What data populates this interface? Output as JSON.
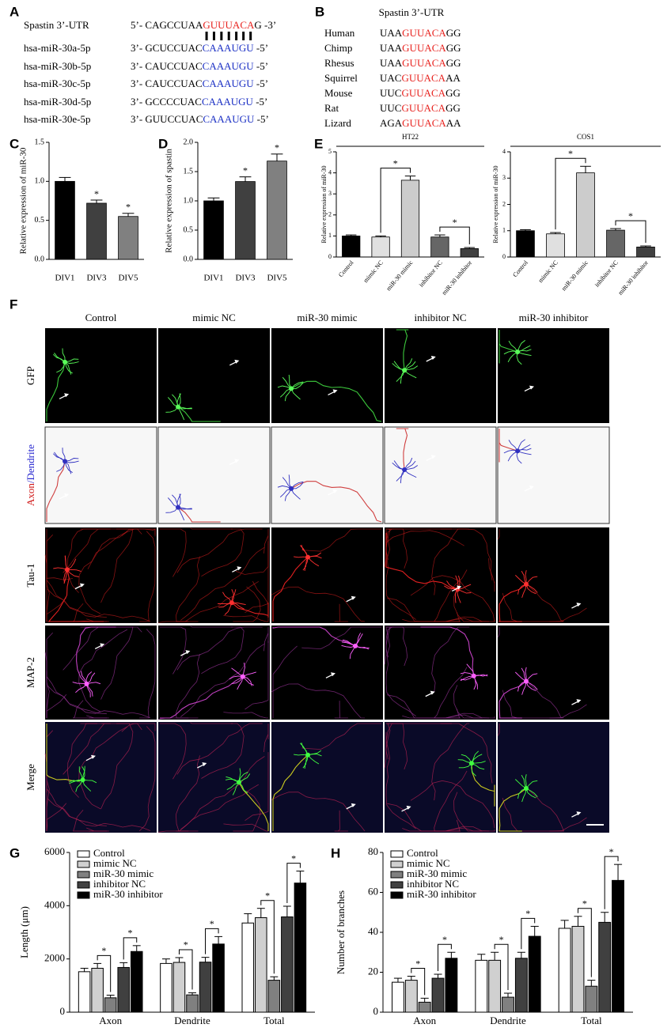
{
  "panel_a": {
    "panel_label": "A",
    "target": {
      "name": "Spastin 3’-UTR",
      "seq": [
        "5’- CAGCCUAA",
        "GUUUACA",
        "G -3’"
      ]
    },
    "mirnas": [
      {
        "name": "hsa-miR-30a-5p",
        "seq": [
          "3’- GCUCCUAC",
          "CAAAUGU",
          " -5’"
        ]
      },
      {
        "name": "hsa-miR-30b-5p",
        "seq": [
          "3’- CAUCCUAC",
          "CAAAUGU",
          " -5’"
        ]
      },
      {
        "name": "hsa-miR-30c-5p",
        "seq": [
          "3’- CAUCCUAC",
          "CAAAUGU",
          " -5’"
        ]
      },
      {
        "name": "hsa-miR-30d-5p",
        "seq": [
          "3’- GCCCCUAC",
          "CAAAUGU",
          " -5’"
        ]
      },
      {
        "name": "hsa-miR-30e-5p",
        "seq": [
          "3’- GUUCCUAC",
          "CAAAUGU",
          " -5’"
        ]
      }
    ]
  },
  "panel_b": {
    "panel_label": "B",
    "title": "Spastin 3’-UTR",
    "species": [
      {
        "name": "Human",
        "seq": [
          "UAA",
          "GUUACA",
          "GG"
        ]
      },
      {
        "name": "Chimp",
        "seq": [
          "UAA",
          "GUUACA",
          "GG"
        ]
      },
      {
        "name": "Rhesus",
        "seq": [
          "UAA",
          "GUUACA",
          "GG"
        ]
      },
      {
        "name": "Squirrel",
        "seq": [
          "UAC",
          "GUUACA",
          "AA"
        ]
      },
      {
        "name": "Mouse",
        "seq": [
          "UUC",
          "GUUACA",
          "GG"
        ]
      },
      {
        "name": "Rat",
        "seq": [
          "UUC",
          "GUUACA",
          "GG"
        ]
      },
      {
        "name": "Lizard",
        "seq": [
          "AGA",
          "GUUACA",
          "AA"
        ]
      }
    ]
  },
  "panel_f": {
    "panel_label": "F",
    "columns": [
      "Control",
      "mimic NC",
      "miR-30 mimic",
      "inhibitor NC",
      "miR-30 inhibitor"
    ],
    "rows": [
      [
        "GFP"
      ],
      [
        "Axon",
        "/Dendrite"
      ],
      [
        "Tau-1"
      ],
      [
        "MAP-2"
      ],
      [
        "Merge"
      ]
    ]
  },
  "chart_data": [
    {
      "type": "bar",
      "panel_label": "C",
      "y_label": "Relative expression of miR-30",
      "categories": [
        "DIV1",
        "DIV3",
        "DIV5"
      ],
      "values": [
        1.0,
        0.72,
        0.55
      ],
      "errors": [
        0.05,
        0.04,
        0.04
      ],
      "colors": [
        "#000000",
        "#404040",
        "#808080"
      ],
      "ylim": [
        0,
        1.5
      ],
      "yticks": [
        {
          "value": 0,
          "label": "0.0"
        },
        0.5,
        {
          "value": 1,
          "label": "1.0"
        },
        1.5
      ],
      "annotations": [
        "*",
        "*"
      ]
    },
    {
      "type": "bar",
      "panel_label": "D",
      "y_label": "Relative expression of spastin",
      "categories": [
        "DIV1",
        "DIV3",
        "DIV5"
      ],
      "values": [
        1.0,
        1.33,
        1.68
      ],
      "errors": [
        0.05,
        0.08,
        0.12
      ],
      "colors": [
        "#000000",
        "#404040",
        "#808080"
      ],
      "ylim": [
        0,
        2
      ],
      "yticks": [
        {
          "value": 0,
          "label": "0.0"
        },
        0.5,
        {
          "value": 1,
          "label": "1.0"
        },
        1.5,
        {
          "value": 2,
          "label": "2.0"
        }
      ],
      "annotations": [
        "*",
        "*"
      ]
    },
    {
      "type": "bar",
      "panel_label": "E",
      "title": "HT22",
      "y_label": "Relative expression of miR-30",
      "categories": [
        "Control",
        "mimic NC",
        "miR-30 mimic",
        "inhibitor NC",
        "miR-30 inhibitor"
      ],
      "values": [
        1.0,
        0.95,
        3.65,
        0.95,
        0.4
      ],
      "errors": [
        0.05,
        0.05,
        0.2,
        0.1,
        0.05
      ],
      "colors": [
        "#000000",
        "#e0e0e0",
        "#cccccc",
        "#666666",
        "#404040"
      ],
      "ylim": [
        0,
        5
      ],
      "yticks": [
        0,
        1,
        2,
        3,
        4,
        5
      ],
      "annotations": [
        "*",
        "*"
      ]
    },
    {
      "type": "bar",
      "title": "COS1",
      "y_label": "Relative expression of miR-30",
      "categories": [
        "Control",
        "mimic NC",
        "miR-30 mimic",
        "inhibitor NC",
        "miR-30 inhibitor"
      ],
      "values": [
        1.0,
        0.88,
        3.2,
        1.02,
        0.38
      ],
      "errors": [
        0.04,
        0.05,
        0.25,
        0.06,
        0.04
      ],
      "colors": [
        "#000000",
        "#e0e0e0",
        "#cccccc",
        "#666666",
        "#404040"
      ],
      "ylim": [
        0,
        4
      ],
      "yticks": [
        0,
        1,
        2,
        3,
        4
      ],
      "annotations": [
        "*",
        "*"
      ]
    },
    {
      "type": "bar",
      "panel_label": "G",
      "y_label": "Length (μm)",
      "categories": [
        "Axon",
        "Dendrite",
        "Total"
      ],
      "ylim": [
        0,
        6000
      ],
      "yticks": [
        0,
        2000,
        4000,
        6000
      ],
      "series": [
        {
          "name": "Control",
          "color": "#ffffff",
          "values": [
            1520,
            1830,
            3350
          ],
          "errors": [
            130,
            170,
            350
          ]
        },
        {
          "name": "mimic NC",
          "color": "#d0d0d0",
          "values": [
            1650,
            1870,
            3550
          ],
          "errors": [
            180,
            180,
            350
          ]
        },
        {
          "name": "miR-30 mimic",
          "color": "#808080",
          "values": [
            540,
            650,
            1200
          ],
          "errors": [
            100,
            80,
            130
          ]
        },
        {
          "name": "inhibitor NC",
          "color": "#404040",
          "values": [
            1680,
            1880,
            3580
          ],
          "errors": [
            180,
            180,
            400
          ]
        },
        {
          "name": "miR-30 inhibitor",
          "color": "#000000",
          "values": [
            2280,
            2560,
            4850
          ],
          "errors": [
            220,
            280,
            450
          ]
        }
      ],
      "annotations": [
        "*",
        "*",
        "*",
        "*",
        "*",
        "*"
      ]
    },
    {
      "type": "bar",
      "panel_label": "H",
      "y_label": "Number of branches",
      "categories": [
        "Axon",
        "Dendrite",
        "Total"
      ],
      "ylim": [
        0,
        80
      ],
      "yticks": [
        0,
        20,
        40,
        60,
        80
      ],
      "series": [
        {
          "name": "Control",
          "color": "#ffffff",
          "values": [
            15,
            26,
            42
          ],
          "errors": [
            2,
            3,
            4
          ]
        },
        {
          "name": "mimic NC",
          "color": "#d0d0d0",
          "values": [
            16,
            26,
            43
          ],
          "errors": [
            2,
            4,
            5
          ]
        },
        {
          "name": "miR-30 mimic",
          "color": "#808080",
          "values": [
            5,
            7.5,
            13
          ],
          "errors": [
            2,
            2,
            3
          ]
        },
        {
          "name": "inhibitor NC",
          "color": "#404040",
          "values": [
            17,
            27,
            45
          ],
          "errors": [
            2,
            3,
            5
          ]
        },
        {
          "name": "miR-30 inhibitor",
          "color": "#000000",
          "values": [
            27,
            38,
            66
          ],
          "errors": [
            3,
            5,
            8
          ]
        }
      ],
      "annotations": [
        "*",
        "*",
        "*",
        "*",
        "*",
        "*"
      ]
    }
  ]
}
